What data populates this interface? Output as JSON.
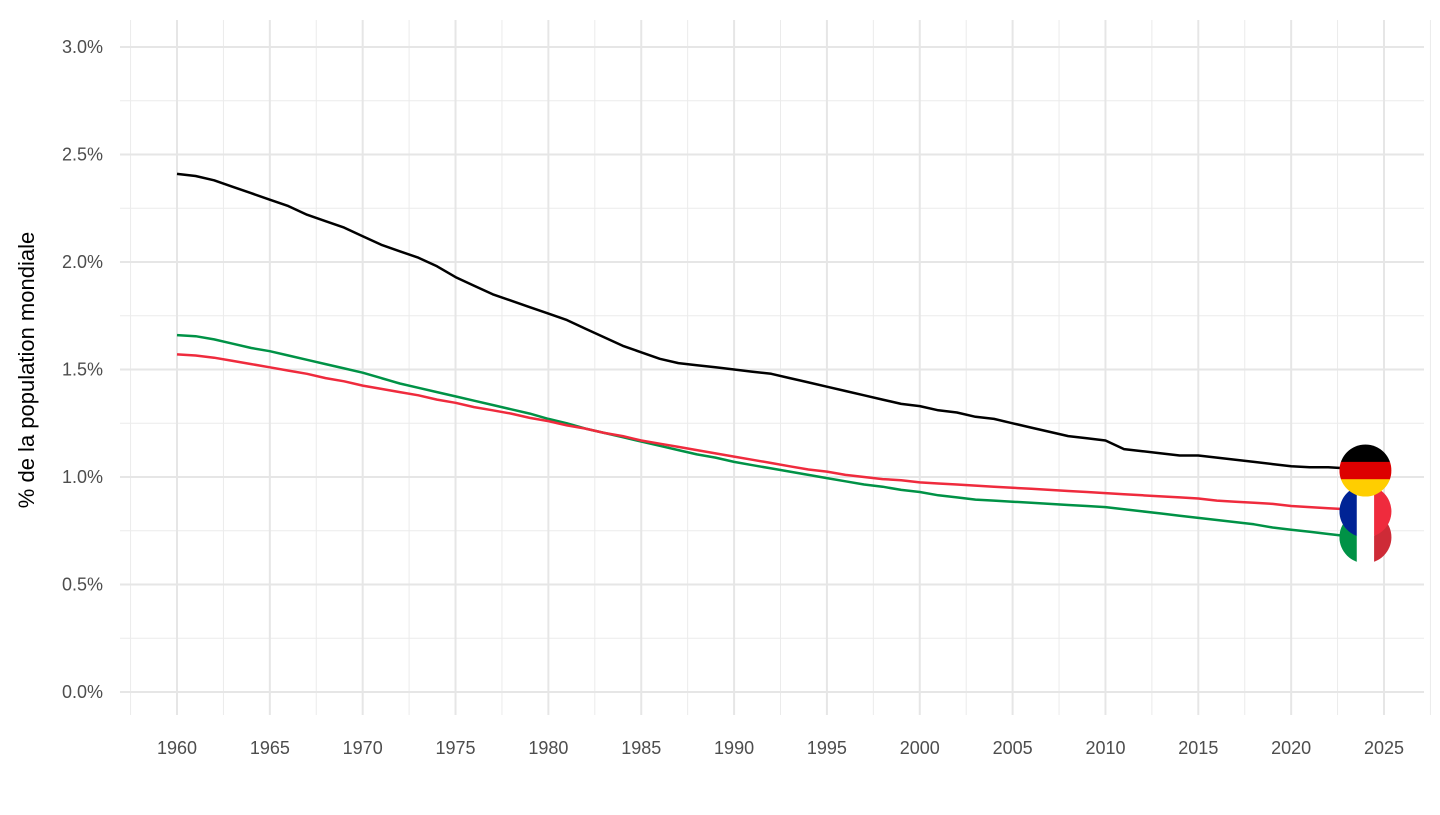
{
  "chart_data": {
    "type": "line",
    "title": "",
    "xlabel": "",
    "ylabel": "% de la population mondiale",
    "xlim": [
      1957.5,
      2027.5
    ],
    "ylim": [
      0,
      3.0
    ],
    "x_ticks": [
      1960,
      1965,
      1970,
      1975,
      1980,
      1985,
      1990,
      1995,
      2000,
      2005,
      2010,
      2015,
      2020,
      2025
    ],
    "x_tick_labels": [
      "1960",
      "1965",
      "1970",
      "1975",
      "1980",
      "1985",
      "1990",
      "1995",
      "2000",
      "2005",
      "2010",
      "2015",
      "2020",
      "2025"
    ],
    "y_ticks": [
      0,
      0.5,
      1.0,
      1.5,
      2.0,
      2.5,
      3.0
    ],
    "y_tick_labels": [
      "0.0%",
      "0.5%",
      "1.0%",
      "1.5%",
      "2.0%",
      "2.5%",
      "3.0%"
    ],
    "grid": true,
    "legend": "none (flags at line ends)",
    "x": [
      1960,
      1961,
      1962,
      1963,
      1964,
      1965,
      1966,
      1967,
      1968,
      1969,
      1970,
      1971,
      1972,
      1973,
      1974,
      1975,
      1976,
      1977,
      1978,
      1979,
      1980,
      1981,
      1982,
      1983,
      1984,
      1985,
      1986,
      1987,
      1988,
      1989,
      1990,
      1991,
      1992,
      1993,
      1994,
      1995,
      1996,
      1997,
      1998,
      1999,
      2000,
      2001,
      2002,
      2003,
      2004,
      2005,
      2006,
      2007,
      2008,
      2009,
      2010,
      2011,
      2012,
      2013,
      2014,
      2015,
      2016,
      2017,
      2018,
      2019,
      2020,
      2021,
      2022,
      2023
    ],
    "series": [
      {
        "flag": "italy-flag-icon",
        "color": "#009246",
        "flag_x": 2024,
        "flag_y": 0.72,
        "values": [
          1.66,
          1.655,
          1.64,
          1.62,
          1.6,
          1.585,
          1.565,
          1.545,
          1.525,
          1.505,
          1.485,
          1.46,
          1.435,
          1.415,
          1.395,
          1.375,
          1.355,
          1.335,
          1.315,
          1.295,
          1.27,
          1.25,
          1.225,
          1.205,
          1.185,
          1.165,
          1.145,
          1.125,
          1.105,
          1.09,
          1.07,
          1.055,
          1.04,
          1.025,
          1.01,
          0.995,
          0.98,
          0.965,
          0.955,
          0.94,
          0.93,
          0.915,
          0.905,
          0.895,
          0.89,
          0.885,
          0.88,
          0.875,
          0.87,
          0.865,
          0.86,
          0.85,
          0.84,
          0.83,
          0.82,
          0.81,
          0.8,
          0.79,
          0.78,
          0.765,
          0.755,
          0.745,
          0.735,
          0.725
        ]
      },
      {
        "flag": "france-flag-icon",
        "color": "#EF2B3D",
        "flag_x": 2024,
        "flag_y": 0.84,
        "values": [
          1.57,
          1.565,
          1.555,
          1.54,
          1.525,
          1.51,
          1.495,
          1.48,
          1.46,
          1.445,
          1.425,
          1.41,
          1.395,
          1.38,
          1.36,
          1.345,
          1.325,
          1.31,
          1.295,
          1.275,
          1.26,
          1.24,
          1.225,
          1.205,
          1.19,
          1.17,
          1.155,
          1.14,
          1.125,
          1.11,
          1.095,
          1.08,
          1.065,
          1.05,
          1.035,
          1.025,
          1.01,
          1.0,
          0.99,
          0.985,
          0.975,
          0.97,
          0.965,
          0.96,
          0.955,
          0.95,
          0.945,
          0.94,
          0.935,
          0.93,
          0.925,
          0.92,
          0.915,
          0.91,
          0.905,
          0.9,
          0.89,
          0.885,
          0.88,
          0.875,
          0.865,
          0.86,
          0.855,
          0.85
        ]
      },
      {
        "flag": "germany-flag-icon",
        "color": "#000000",
        "flag_x": 2024,
        "flag_y": 1.03,
        "values": [
          2.41,
          2.4,
          2.38,
          2.35,
          2.32,
          2.29,
          2.26,
          2.22,
          2.19,
          2.16,
          2.12,
          2.08,
          2.05,
          2.02,
          1.98,
          1.93,
          1.89,
          1.85,
          1.82,
          1.79,
          1.76,
          1.73,
          1.69,
          1.65,
          1.61,
          1.58,
          1.55,
          1.53,
          1.52,
          1.51,
          1.5,
          1.49,
          1.48,
          1.46,
          1.44,
          1.42,
          1.4,
          1.38,
          1.36,
          1.34,
          1.33,
          1.31,
          1.3,
          1.28,
          1.27,
          1.25,
          1.23,
          1.21,
          1.19,
          1.18,
          1.17,
          1.13,
          1.12,
          1.11,
          1.1,
          1.1,
          1.09,
          1.08,
          1.07,
          1.06,
          1.05,
          1.045,
          1.045,
          1.04
        ]
      }
    ]
  }
}
